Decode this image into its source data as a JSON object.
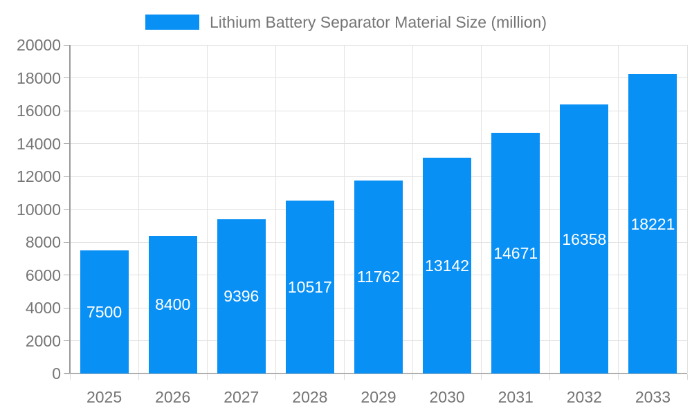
{
  "chart_data": {
    "type": "bar",
    "title": "Lithium Battery Separator Material Size (million)",
    "legend_position": "top",
    "categories": [
      "2025",
      "2026",
      "2027",
      "2028",
      "2029",
      "2030",
      "2031",
      "2032",
      "2033"
    ],
    "values": [
      7500,
      8400,
      9396,
      10517,
      11762,
      13142,
      14671,
      16358,
      18221
    ],
    "xlabel": "",
    "ylabel": "",
    "ylim": [
      0,
      20000
    ],
    "yticks": [
      0,
      2000,
      4000,
      6000,
      8000,
      10000,
      12000,
      14000,
      16000,
      18000,
      20000
    ],
    "grid": "horizontal and vertical",
    "bar_color": "#0990f5",
    "value_label_color": "#ffffff",
    "axis_text_color": "#757575",
    "grid_color": "#e2e2e2"
  }
}
